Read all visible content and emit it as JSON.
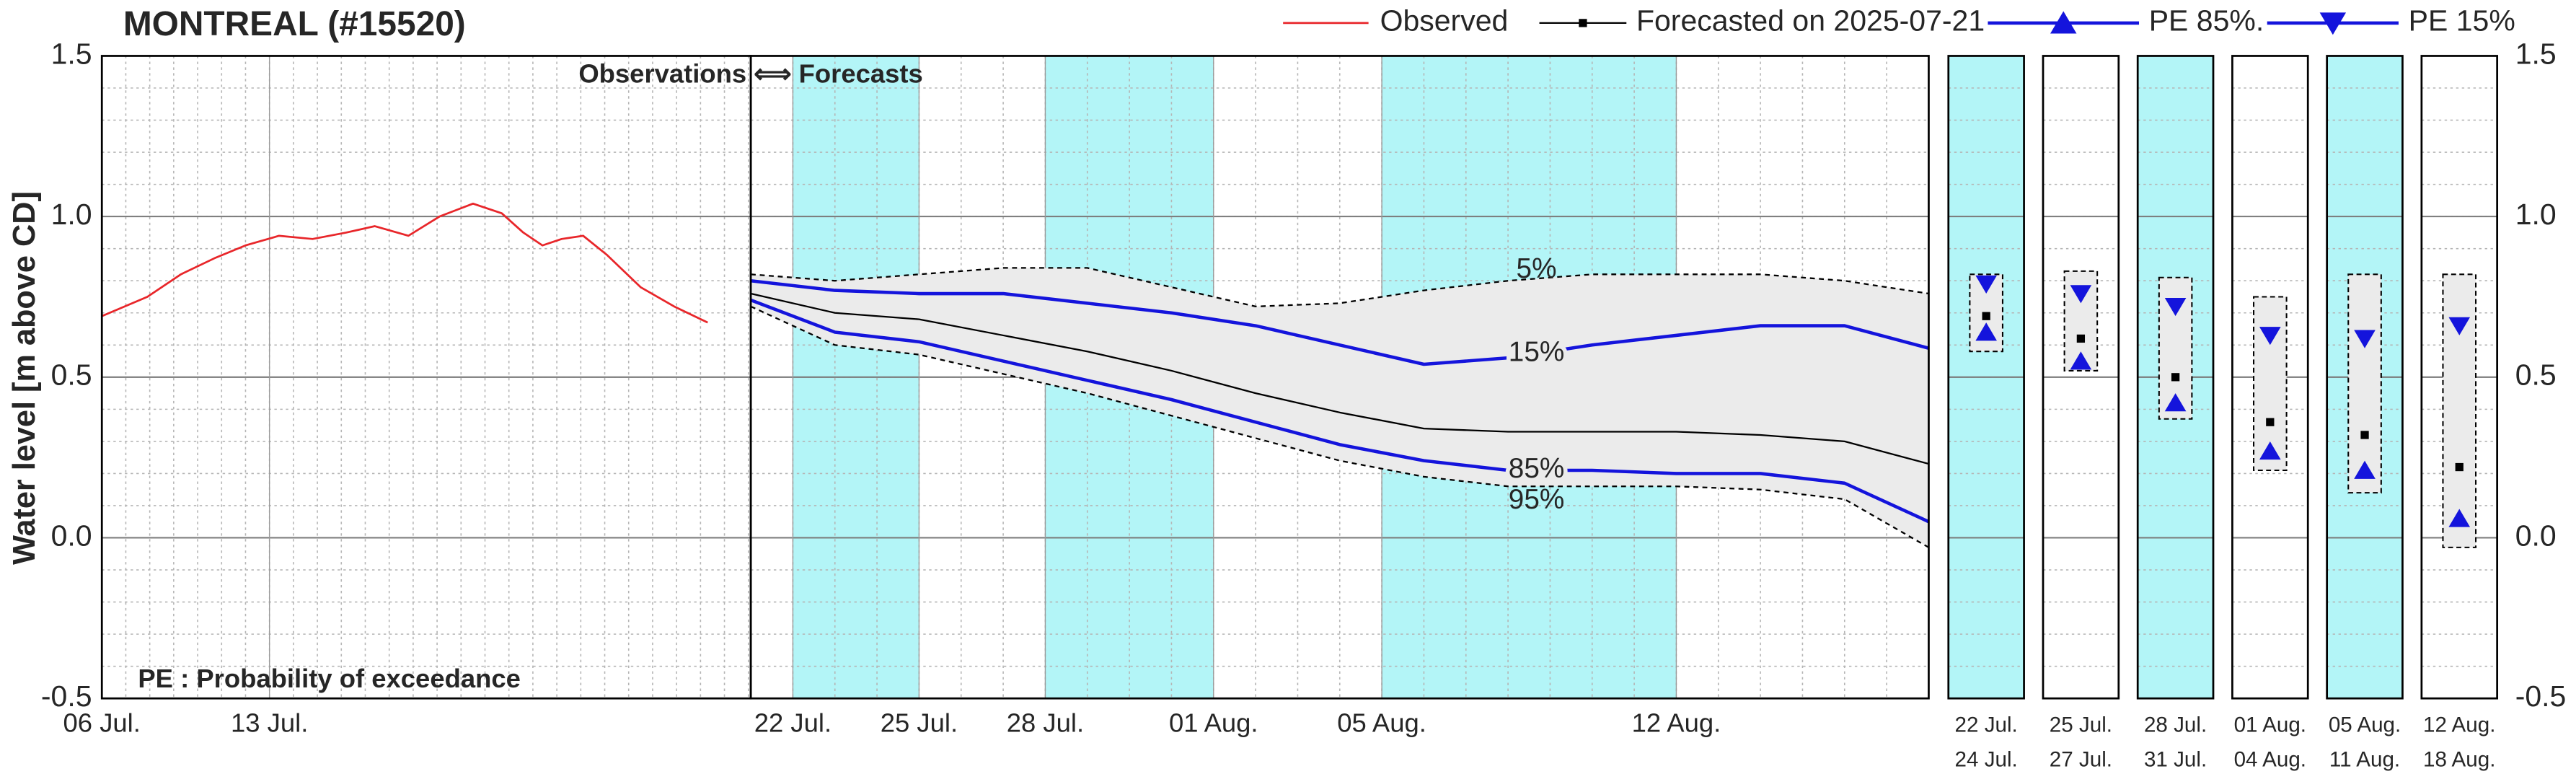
{
  "chart_data": [
    {
      "type": "line",
      "title": "MONTREAL (#15520)",
      "y_label": "Water level [m above CD]",
      "footnote": "PE : Probability of exceedance",
      "x": [
        6,
        7.9,
        9.3,
        10.7,
        12.0,
        13.4,
        14.8,
        16.2,
        17.4,
        18.8,
        20.1,
        21.5,
        22.7,
        23.6,
        24.4,
        25.2,
        26.1,
        27.1,
        28.5,
        29.9,
        31.3
      ],
      "series": [
        {
          "name": "Observed",
          "color": "#e8262a",
          "line_width": 1.2,
          "values": [
            0.69,
            0.75,
            0.82,
            0.87,
            0.91,
            0.94,
            0.93,
            0.95,
            0.97,
            0.94,
            1.0,
            1.04,
            1.01,
            0.95,
            0.91,
            0.93,
            0.94,
            0.88,
            0.78,
            0.72,
            0.67
          ]
        }
      ],
      "xlim": [
        6,
        33.1
      ],
      "xticks": [
        {
          "value": 6,
          "label": "06 Jul."
        },
        {
          "value": 13,
          "label": "13 Jul."
        }
      ],
      "ylim": [
        -0.5,
        1.5
      ],
      "yticks": [
        -0.5,
        {
          "value": 0,
          "label": "0.0"
        },
        0.5,
        {
          "value": 1,
          "label": "1.0"
        },
        1.5
      ],
      "grid": true,
      "minor_grid": true,
      "legend": "top-right"
    },
    {
      "type": "line",
      "divider_label": "Observations ⟺ Forecasts",
      "x": [
        21,
        23,
        25,
        27,
        29,
        31,
        33,
        35,
        37,
        39,
        41,
        43,
        45,
        47,
        49
      ],
      "series": [
        {
          "name": "Forecasted on 2025-07-21",
          "color": "#000000",
          "marker": "square",
          "line_width": 1,
          "values": [
            0.76,
            0.7,
            0.68,
            0.63,
            0.58,
            0.52,
            0.45,
            0.39,
            0.34,
            0.33,
            0.33,
            0.33,
            0.32,
            0.3,
            0.23
          ]
        },
        {
          "name": "PE 85%.",
          "label": "85%",
          "color": "#1414dc",
          "marker": "triangle-up",
          "line_width": 2,
          "values": [
            0.74,
            0.64,
            0.61,
            0.55,
            0.49,
            0.43,
            0.36,
            0.29,
            0.24,
            0.21,
            0.21,
            0.2,
            0.2,
            0.17,
            0.05
          ]
        },
        {
          "name": "PE 15%",
          "label": "15%",
          "color": "#1414dc",
          "marker": "triangle-down",
          "line_width": 2,
          "values": [
            0.8,
            0.77,
            0.76,
            0.76,
            0.73,
            0.7,
            0.66,
            0.6,
            0.54,
            0.56,
            0.6,
            0.63,
            0.66,
            0.66,
            0.59
          ]
        },
        {
          "label": "5%",
          "color": "#000000",
          "style": "dashed",
          "line_width": 1,
          "values": [
            0.82,
            0.8,
            0.82,
            0.84,
            0.84,
            0.78,
            0.72,
            0.73,
            0.77,
            0.8,
            0.82,
            0.82,
            0.82,
            0.8,
            0.76
          ]
        },
        {
          "label": "95%",
          "color": "#000000",
          "style": "dashed",
          "line_width": 1,
          "values": [
            0.72,
            0.6,
            0.57,
            0.51,
            0.45,
            0.38,
            0.31,
            0.24,
            0.19,
            0.16,
            0.16,
            0.16,
            0.15,
            0.12,
            -0.03
          ]
        }
      ],
      "shaded": [
        [
          22,
          25
        ],
        [
          28,
          32
        ],
        [
          36,
          43
        ]
      ],
      "shade_color": "#b3f5f7",
      "band_color": "#ebebeb",
      "xlim": [
        21,
        49
      ],
      "xticks": [
        {
          "value": 22,
          "label": "22 Jul."
        },
        {
          "value": 25,
          "label": "25 Jul."
        },
        {
          "value": 28,
          "label": "28 Jul."
        },
        {
          "value": 32,
          "label": "01 Aug."
        },
        {
          "value": 36,
          "label": "05 Aug."
        },
        {
          "value": 43,
          "label": "12 Aug."
        }
      ],
      "ylim": [
        -0.5,
        1.5
      ],
      "yticks": [
        -0.5,
        {
          "value": 0,
          "label": "0.0"
        },
        0.5,
        {
          "value": 1,
          "label": "1.0"
        },
        1.5
      ],
      "grid": true,
      "minor_grid": true
    },
    {
      "type": "range",
      "shade_color": "#b3f5f7",
      "box_color": "#000000",
      "band_color": "#ebebeb",
      "median_color": "#000000",
      "pe_color": "#1414dc",
      "periods": [
        {
          "start": "22 Jul.",
          "end": "24 Jul.",
          "shaded": true,
          "max": 0.82,
          "pe15": 0.79,
          "median": 0.69,
          "pe85": 0.64,
          "min": 0.58
        },
        {
          "start": "25 Jul.",
          "end": "27 Jul.",
          "shaded": false,
          "max": 0.83,
          "pe15": 0.76,
          "median": 0.62,
          "pe85": 0.55,
          "min": 0.52
        },
        {
          "start": "28 Jul.",
          "end": "31 Jul.",
          "shaded": true,
          "max": 0.81,
          "pe15": 0.72,
          "median": 0.5,
          "pe85": 0.42,
          "min": 0.37
        },
        {
          "start": "01 Aug.",
          "end": "04 Aug.",
          "shaded": false,
          "max": 0.75,
          "pe15": 0.63,
          "median": 0.36,
          "pe85": 0.27,
          "min": 0.21
        },
        {
          "start": "05 Aug.",
          "end": "11 Aug.",
          "shaded": true,
          "max": 0.82,
          "pe15": 0.62,
          "median": 0.32,
          "pe85": 0.21,
          "min": 0.14
        },
        {
          "start": "12 Aug.",
          "end": "18 Aug.",
          "shaded": false,
          "max": 0.82,
          "pe15": 0.66,
          "median": 0.22,
          "pe85": 0.06,
          "min": -0.03
        }
      ],
      "ylim": [
        -0.5,
        1.5
      ],
      "yticks": [
        -0.5,
        {
          "value": 0,
          "label": "0.0"
        },
        0.5,
        {
          "value": 1,
          "label": "1.0"
        },
        1.5
      ],
      "grid": true,
      "minor_grid": true
    }
  ]
}
